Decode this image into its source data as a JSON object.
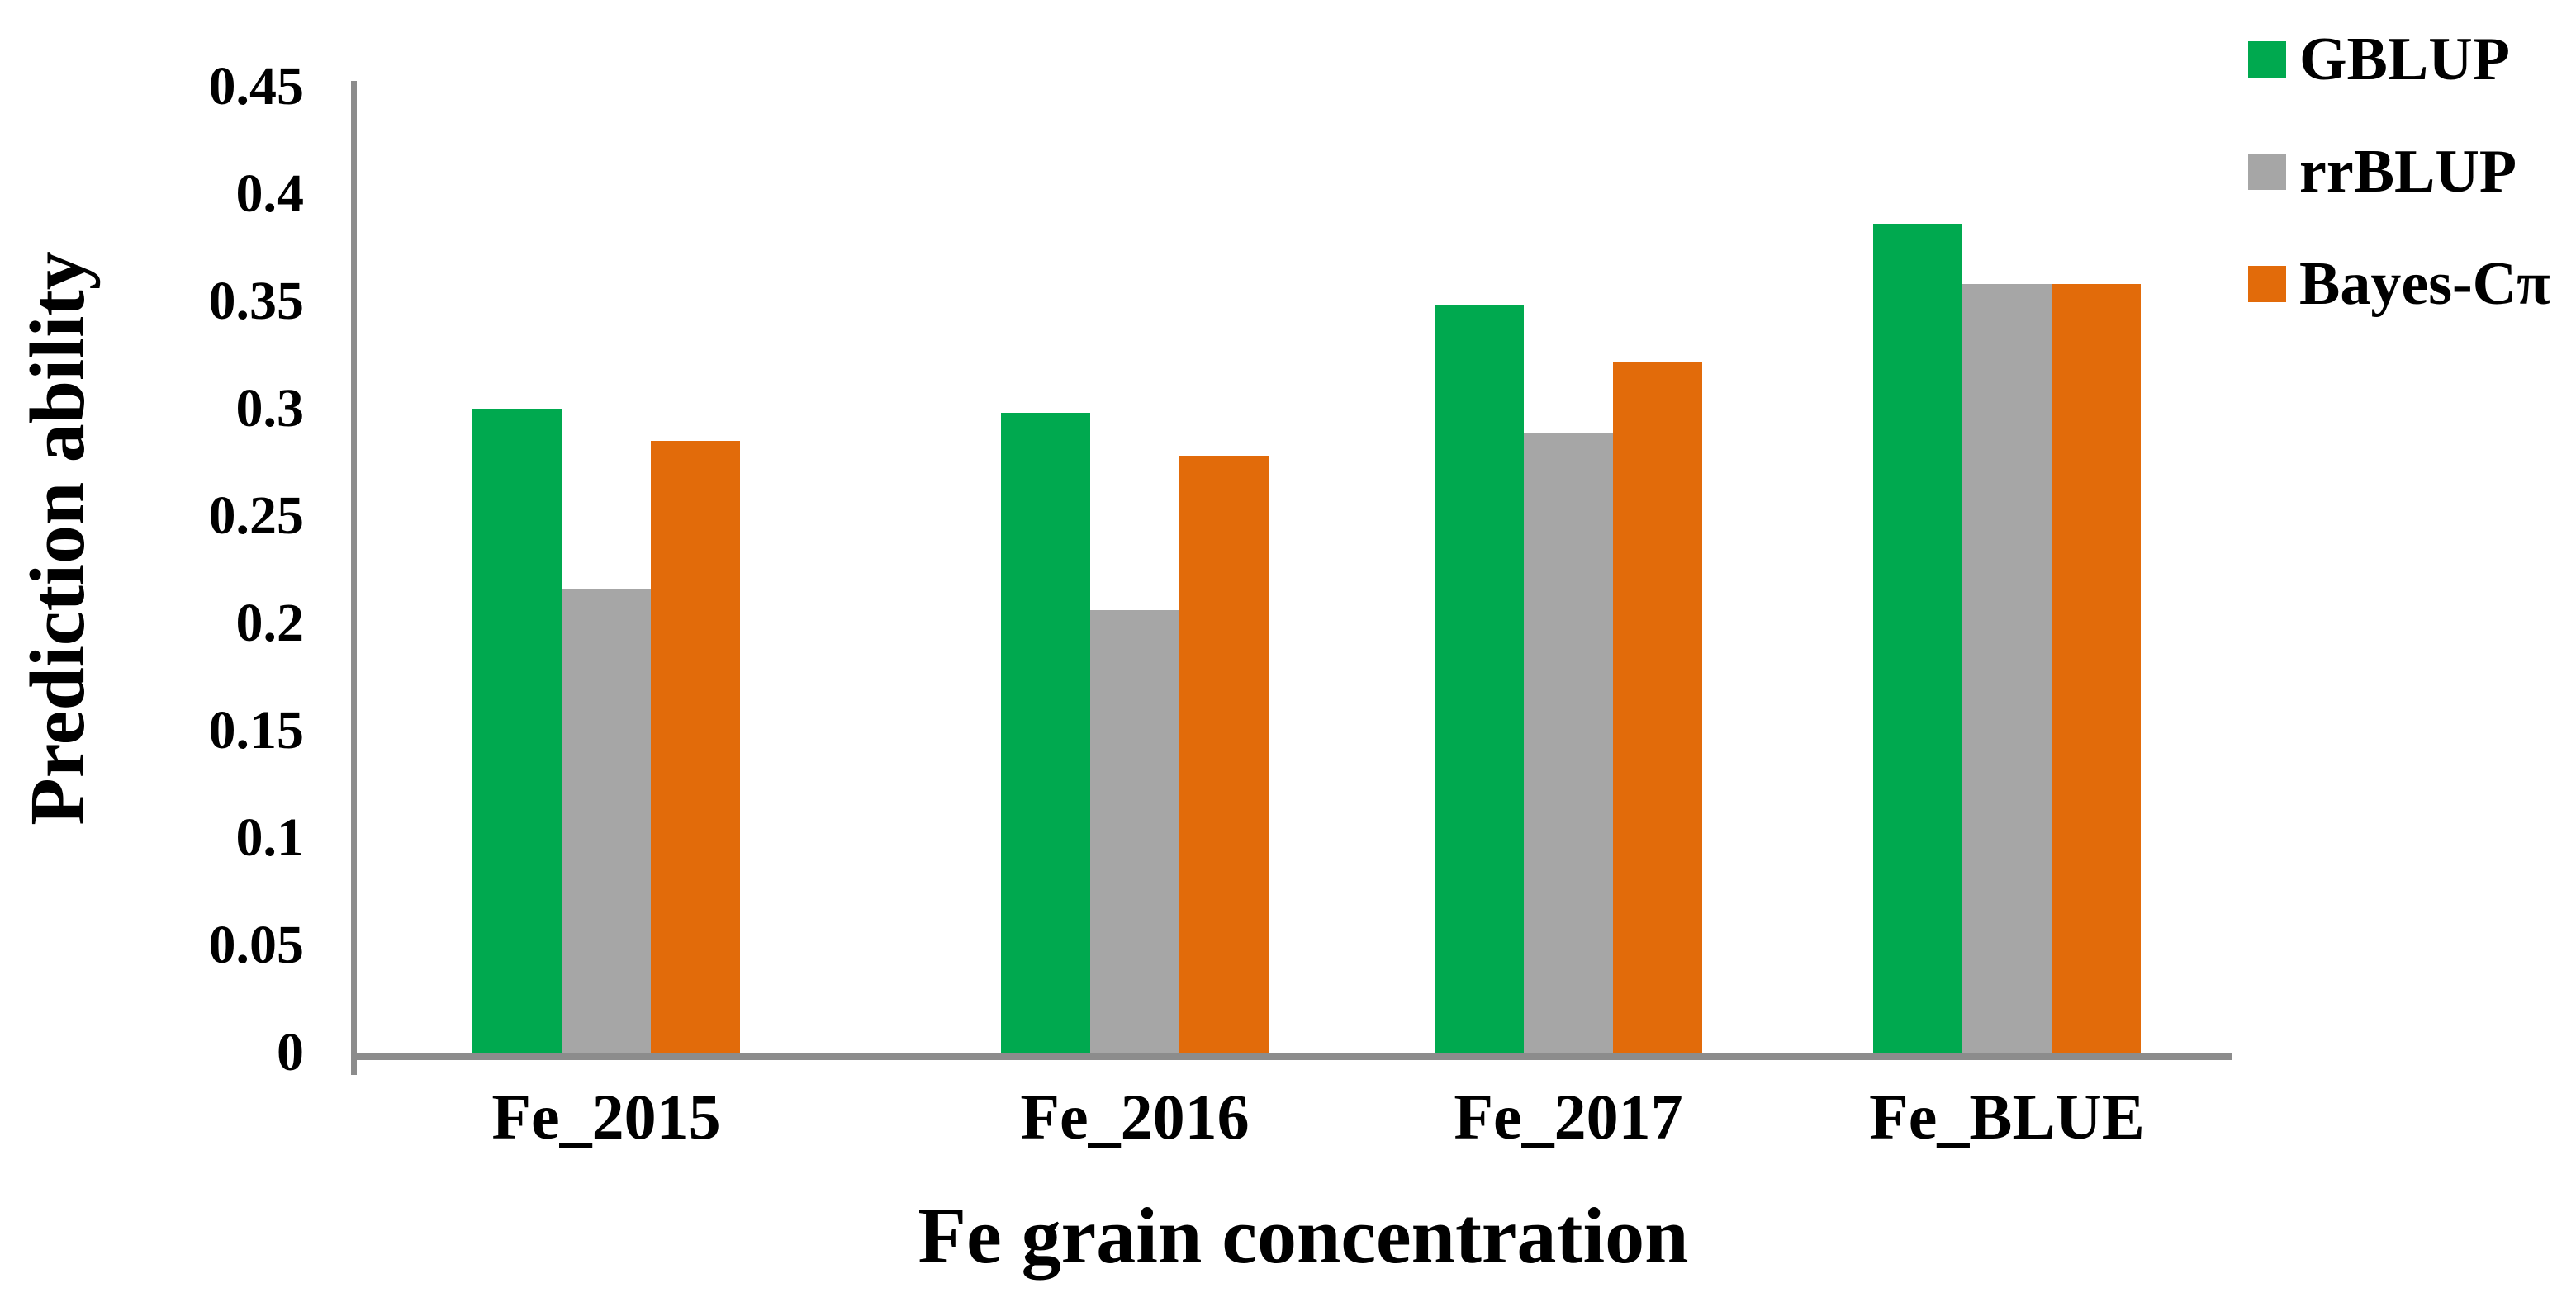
{
  "chart_data": {
    "type": "bar",
    "title": "",
    "xlabel": "Fe grain concentration",
    "ylabel": "Prediction ability",
    "categories": [
      "Fe_2015",
      "Fe_2016",
      "Fe_2017",
      "Fe_BLUE"
    ],
    "series": [
      {
        "name": "GBLUP",
        "color": "#00A94F",
        "values": [
          0.3,
          0.298,
          0.348,
          0.386
        ]
      },
      {
        "name": "rrBLUP",
        "color": "#A6A6A6",
        "values": [
          0.216,
          0.206,
          0.289,
          0.358
        ]
      },
      {
        "name": "Bayes-Cπ",
        "color": "#E26B0A",
        "values": [
          0.285,
          0.278,
          0.322,
          0.358
        ]
      }
    ],
    "ylim": [
      0,
      0.45
    ],
    "yticks": {
      "values": [
        0,
        0.05,
        0.1,
        0.15,
        0.2,
        0.25,
        0.3,
        0.35,
        0.4,
        0.45
      ],
      "labels": [
        "0",
        "0.05",
        "0.1",
        "0.15",
        "0.2",
        "0.25",
        "0.3",
        "0.35",
        "0.4",
        "0.45"
      ]
    },
    "legend_position": "top-right",
    "grid": false
  },
  "colors": {
    "axis_line": "#8C8C8C",
    "text": "#000000",
    "background": "#FFFFFF"
  }
}
